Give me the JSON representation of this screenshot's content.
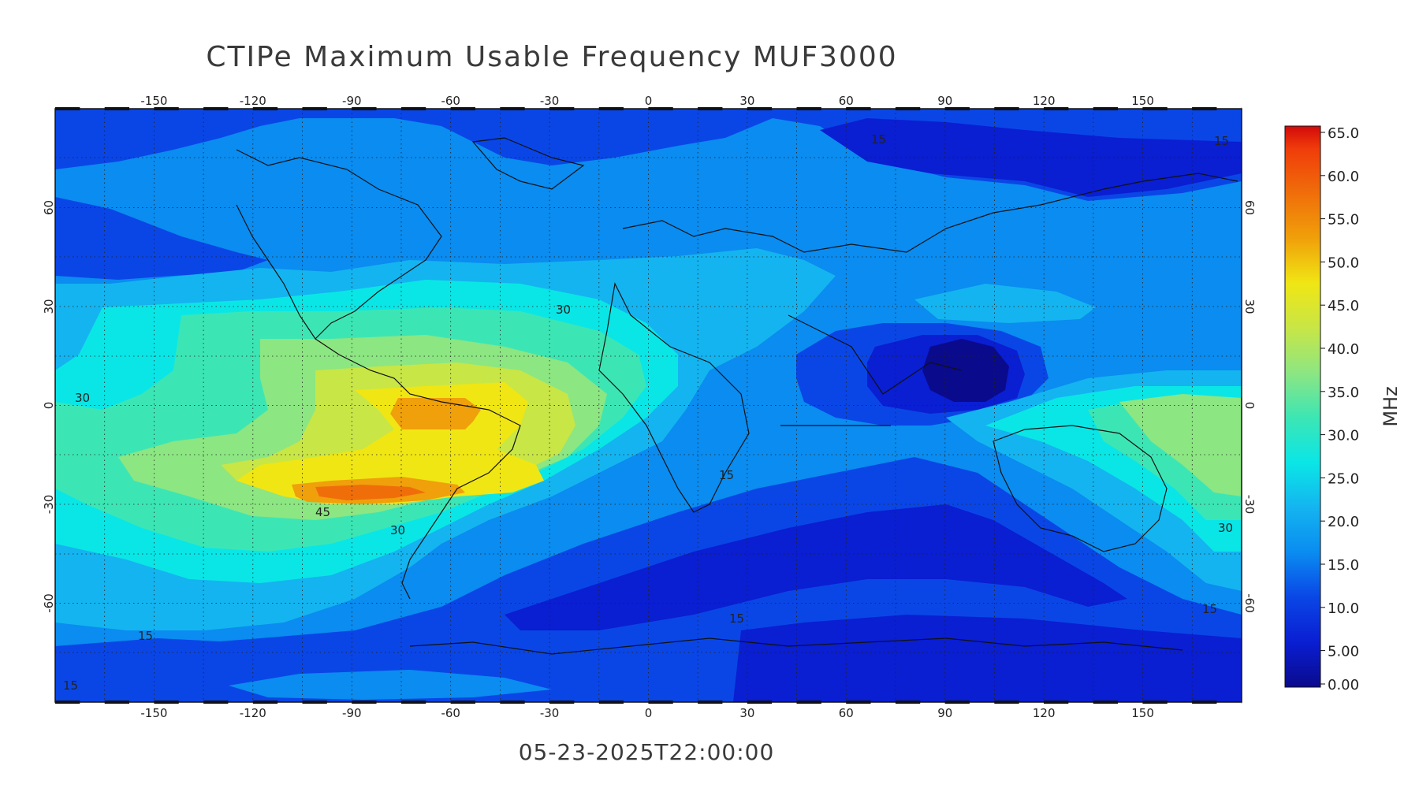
{
  "title": "CTIPe Maximum Usable Frequency MUF3000",
  "timestamp": "05-23-2025T22:00:00",
  "map": {
    "lon_range": [
      -180,
      180
    ],
    "lat_range": [
      -90,
      90
    ],
    "lon_ticks": [
      "-150",
      "-120",
      "-90",
      "-60",
      "-30",
      "0",
      "30",
      "60",
      "90",
      "120",
      "150"
    ],
    "lat_ticks": [
      "60",
      "30",
      "0",
      "-30",
      "-60"
    ],
    "contour_labels": [
      "15",
      "15",
      "30",
      "30",
      "45",
      "30",
      "15",
      "15",
      "15",
      "15",
      "15",
      "30"
    ],
    "grid": "dotted"
  },
  "colorbar": {
    "unit": "MHz",
    "ticks": [
      "65.0",
      "60.0",
      "55.0",
      "50.0",
      "45.0",
      "40.0",
      "35.0",
      "30.0",
      "25.0",
      "20.0",
      "15.0",
      "10.0",
      "5.00",
      "0.00"
    ],
    "range": [
      0,
      65
    ],
    "colors": {
      "c0": "#0a0a8c",
      "c5": "#0a1ed2",
      "c10": "#0a46e6",
      "c15": "#0a8cf0",
      "c20": "#14b4f0",
      "c25": "#0ae6e6",
      "c30": "#3ce6b4",
      "c35": "#8ce682",
      "c40": "#c8e646",
      "c45": "#f0e614",
      "c50": "#f0a00a",
      "c55": "#f06e0a",
      "c60": "#f03c0a",
      "c65": "#d20a0a"
    }
  }
}
